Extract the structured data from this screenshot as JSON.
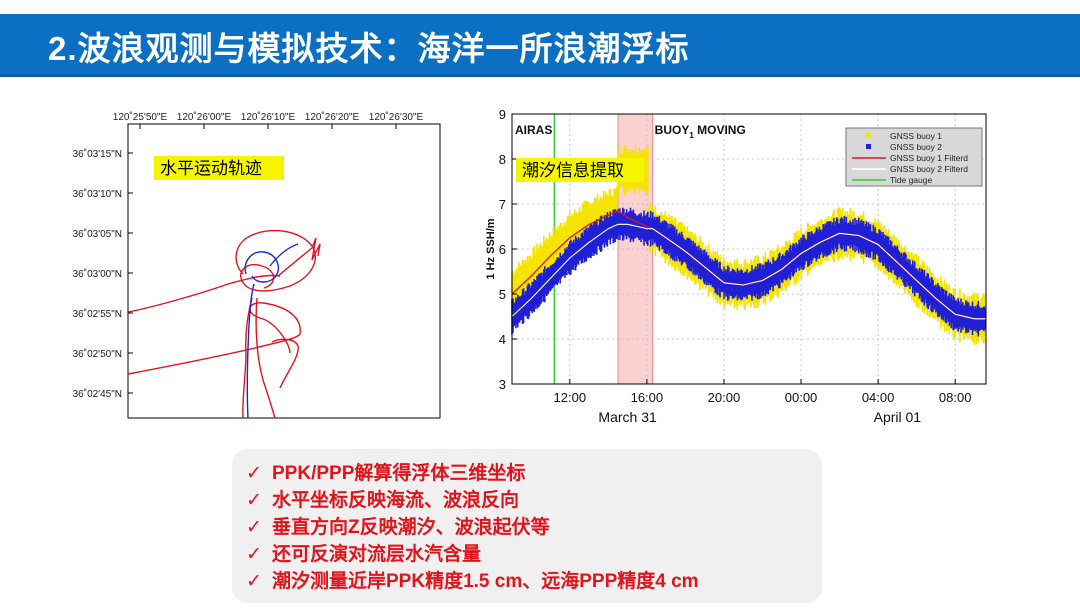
{
  "page": {
    "title": "2.波浪观测与模拟技术：海洋一所浪潮浮标"
  },
  "track_map": {
    "annotation": "水平运动轨迹",
    "lon_ticks": [
      "120˚25'50\"E",
      "120˚26'00\"E",
      "120˚26'10\"E",
      "120˚26'20\"E",
      "120˚26'30\"E"
    ],
    "lat_ticks": [
      "36˚03'15\"N",
      "36˚03'10\"N",
      "36˚03'05\"N",
      "36˚03'00\"N",
      "36˚02'55\"N",
      "36˚02'50\"N",
      "36˚02'45\"N"
    ],
    "colors": {
      "track_red": "#e0141e",
      "track_blue": "#1a2ad0"
    }
  },
  "chart_data": {
    "type": "line",
    "annotation": "潮汐信息提取",
    "ylabel": "1 Hz SSH/m",
    "ylim": [
      3,
      9
    ],
    "yticks": [
      "3",
      "4",
      "5",
      "6",
      "7",
      "8",
      "9"
    ],
    "xlim": [
      9,
      33.6
    ],
    "xticks": [
      {
        "pos": 12,
        "label": "12:00"
      },
      {
        "pos": 16,
        "label": "16:00"
      },
      {
        "pos": 20,
        "label": "20:00"
      },
      {
        "pos": 24,
        "label": "00:00"
      },
      {
        "pos": 28,
        "label": "04:00"
      },
      {
        "pos": 32,
        "label": "08:00"
      }
    ],
    "date_labels": [
      {
        "pos": 15,
        "label": "March 31"
      },
      {
        "pos": 29,
        "label": "April 01"
      }
    ],
    "text_labels": {
      "airas": "AIRAS",
      "buoy_prefix": "BUOY",
      "buoy_sub": "1",
      "buoy_suffix": " MOVING"
    },
    "highlight_span": [
      14.5,
      16.3
    ],
    "tide_gauge_x": 11.2,
    "grid": true,
    "legend_position": "top-right",
    "legend": [
      {
        "name": "GNSS buoy 1",
        "kind": "marker",
        "color": "#f5e400"
      },
      {
        "name": "GNSS buoy 2",
        "kind": "marker",
        "color": "#1f1fd6"
      },
      {
        "name": "GNSS buoy 1 Filterd",
        "kind": "line",
        "color": "#e0141e"
      },
      {
        "name": "GNSS buoy 2 Filterd",
        "kind": "line",
        "color": "#ffffff"
      },
      {
        "name": "Tide gauge",
        "kind": "line",
        "color": "#33cc33"
      }
    ],
    "x": [
      9,
      10,
      11,
      12,
      13,
      14,
      14.5,
      15,
      16,
      16.3,
      17,
      18,
      19,
      20,
      21,
      22,
      23,
      24,
      25,
      26,
      27,
      28,
      29,
      30,
      31,
      32,
      33,
      33.6
    ],
    "series": [
      {
        "name": "GNSS buoy 1 Filterd",
        "values": [
          5.0,
          5.4,
          5.85,
          6.25,
          6.55,
          6.75,
          6.85,
          6.7,
          6.5,
          6.45,
          6.25,
          5.95,
          5.6,
          5.25,
          5.2,
          5.3,
          5.55,
          5.9,
          6.15,
          6.35,
          6.3,
          6.1,
          5.7,
          5.3,
          4.9,
          4.55,
          4.45,
          4.45
        ]
      },
      {
        "name": "GNSS buoy 2 Filterd",
        "values": [
          4.5,
          4.9,
          5.35,
          5.8,
          6.15,
          6.45,
          6.55,
          6.55,
          6.45,
          6.45,
          6.25,
          5.95,
          5.6,
          5.25,
          5.2,
          5.3,
          5.55,
          5.9,
          6.15,
          6.35,
          6.3,
          6.1,
          5.7,
          5.3,
          4.9,
          4.55,
          4.45,
          4.45
        ]
      }
    ],
    "buoy1_moving_offset": [
      {
        "x": 14.5,
        "y": 7.75
      },
      {
        "x": 16.1,
        "y": 7.75
      }
    ],
    "colors": {
      "highlight": "#fbd0d0",
      "highlight_border": "#e88a8a",
      "grid": "#bbbbbb",
      "tide": "#33cc33",
      "legend_bg": "#d8d8d8"
    }
  },
  "bullets": {
    "check_mark": "✓",
    "items": [
      "PPK/PPP解算得浮体三维坐标",
      "水平坐标反映海流、波浪反向",
      "垂直方向Z反映潮汐、波浪起伏等",
      "还可反演对流层水汽含量",
      "潮汐测量近岸PPK精度1.5 cm、远海PPP精度4 cm"
    ]
  }
}
